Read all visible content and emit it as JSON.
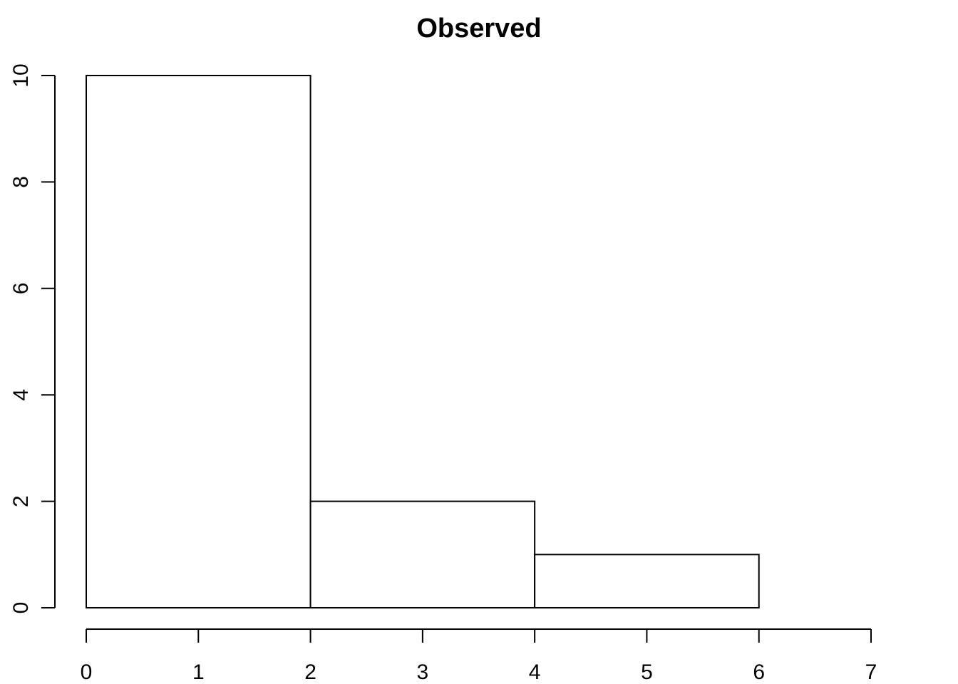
{
  "chart_data": {
    "type": "bar",
    "title": "Observed",
    "xlabel": "",
    "ylabel": "",
    "bins": [
      {
        "x0": 0,
        "x1": 2,
        "value": 10
      },
      {
        "x0": 2,
        "x1": 4,
        "value": 2
      },
      {
        "x0": 4,
        "x1": 6,
        "value": 1
      }
    ],
    "xlim": [
      0,
      7
    ],
    "ylim": [
      0,
      10
    ],
    "x_ticks": [
      0,
      1,
      2,
      3,
      4,
      5,
      6,
      7
    ],
    "y_ticks": [
      0,
      2,
      4,
      6,
      8,
      10
    ],
    "grid": false,
    "legend": "none",
    "colors": {
      "bar_fill": "#ffffff",
      "bar_stroke": "#000000"
    }
  }
}
